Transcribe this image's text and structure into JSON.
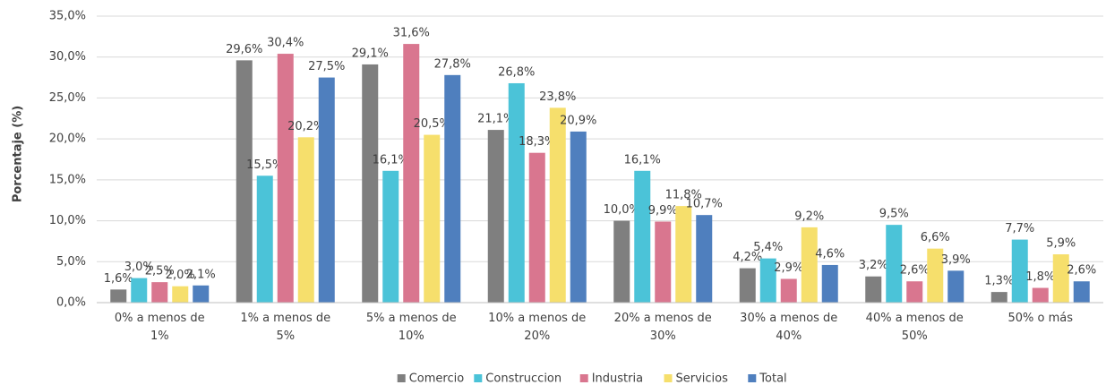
{
  "chart_data": {
    "type": "bar",
    "y_label": "Porcentaje (%)",
    "categories": [
      "0% a menos de 1%",
      "1% a menos de 5%",
      "5% a menos de 10%",
      "10% a menos de 20%",
      "20% a menos de 30%",
      "30% a menos de 40%",
      "40% a menos de 50%",
      "50% o más"
    ],
    "series": [
      {
        "name": "Comercio",
        "color": "#7f7f7f",
        "values": [
          1.6,
          29.6,
          29.1,
          21.1,
          10.0,
          4.2,
          3.2,
          1.3
        ],
        "value_labels": [
          "1,6%",
          "29,6%",
          "29,1%",
          "21,1%",
          "10,0%",
          "4,2%",
          "3,2%",
          "1,3%"
        ]
      },
      {
        "name": "Construccion",
        "color": "#4bc3d8",
        "values": [
          3.0,
          15.5,
          16.1,
          26.8,
          16.1,
          5.4,
          9.5,
          7.7
        ],
        "value_labels": [
          "3,0%",
          "15,5%",
          "16,1%",
          "26,8%",
          "16,1%",
          "5,4%",
          "9,5%",
          "7,7%"
        ]
      },
      {
        "name": "Industria",
        "color": "#d9768f",
        "values": [
          2.5,
          30.4,
          31.6,
          18.3,
          9.9,
          2.9,
          2.6,
          1.8
        ],
        "value_labels": [
          "2,5%",
          "30,4%",
          "31,6%",
          "18,3%",
          "9,9%",
          "2,9%",
          "2,6%",
          "1,8%"
        ]
      },
      {
        "name": "Servicios",
        "color": "#f6df6c",
        "values": [
          2.0,
          20.2,
          20.5,
          23.8,
          11.8,
          9.2,
          6.6,
          5.9
        ],
        "value_labels": [
          "2,0%",
          "20,2%",
          "20,5%",
          "23,8%",
          "11,8%",
          "9,2%",
          "6,6%",
          "5,9%"
        ]
      },
      {
        "name": "Total",
        "color": "#4f7fbe",
        "values": [
          2.1,
          27.5,
          27.8,
          20.9,
          10.7,
          4.6,
          3.9,
          2.6
        ],
        "value_labels": [
          "2,1%",
          "27,5%",
          "27,8%",
          "20,9%",
          "10,7%",
          "4,6%",
          "3,9%",
          "2,6%"
        ]
      }
    ],
    "ylim": [
      0,
      35
    ],
    "yticks": [
      {
        "value": 0,
        "label": "0,0%"
      },
      {
        "value": 5,
        "label": "5,0%"
      },
      {
        "value": 10,
        "label": "10,0%"
      },
      {
        "value": 15,
        "label": "15,0%"
      },
      {
        "value": 20,
        "label": "20,0%"
      },
      {
        "value": 25,
        "label": "25,0%"
      },
      {
        "value": 30,
        "label": "30,0%"
      },
      {
        "value": 35,
        "label": "35,0%"
      }
    ],
    "grid": true,
    "legend": "bottom"
  }
}
